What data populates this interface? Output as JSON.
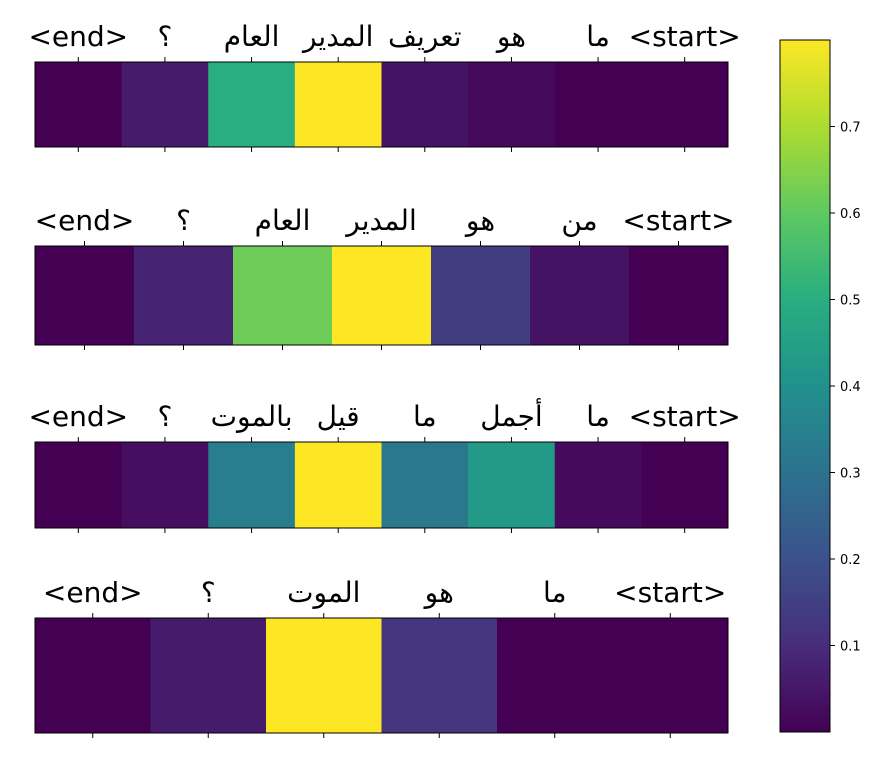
{
  "chart_data": {
    "type": "heatmap",
    "colormap": "viridis",
    "colorbar": {
      "range": [
        0.0,
        0.8
      ],
      "ticks": [
        0.1,
        0.2,
        0.3,
        0.4,
        0.5,
        0.6,
        0.7
      ],
      "labels": [
        "0.1",
        "0.2",
        "0.3",
        "0.4",
        "0.5",
        "0.6",
        "0.7"
      ]
    },
    "rows": [
      {
        "tokens": [
          "<end>",
          "؟",
          "العام",
          "المدير",
          "تعريف",
          "هو",
          "ما",
          "<start>"
        ],
        "values": [
          0.0,
          0.06,
          0.5,
          0.8,
          0.04,
          0.02,
          0.0,
          0.0
        ]
      },
      {
        "tokens": [
          "<end>",
          "؟",
          "العام",
          "المدير",
          "هو",
          "من",
          "<start>"
        ],
        "values": [
          0.0,
          0.08,
          0.62,
          0.8,
          0.14,
          0.04,
          0.0
        ]
      },
      {
        "tokens": [
          "<end>",
          "؟",
          "بالموت",
          "قيل",
          "ما",
          "أجمل",
          "ما",
          "<start>"
        ],
        "values": [
          0.0,
          0.03,
          0.34,
          0.8,
          0.32,
          0.43,
          0.02,
          0.0
        ]
      },
      {
        "tokens": [
          "<end>",
          "؟",
          "الموت",
          "هو",
          "ما",
          "<start>"
        ],
        "values": [
          0.0,
          0.06,
          0.8,
          0.12,
          0.0,
          0.0
        ]
      }
    ]
  }
}
